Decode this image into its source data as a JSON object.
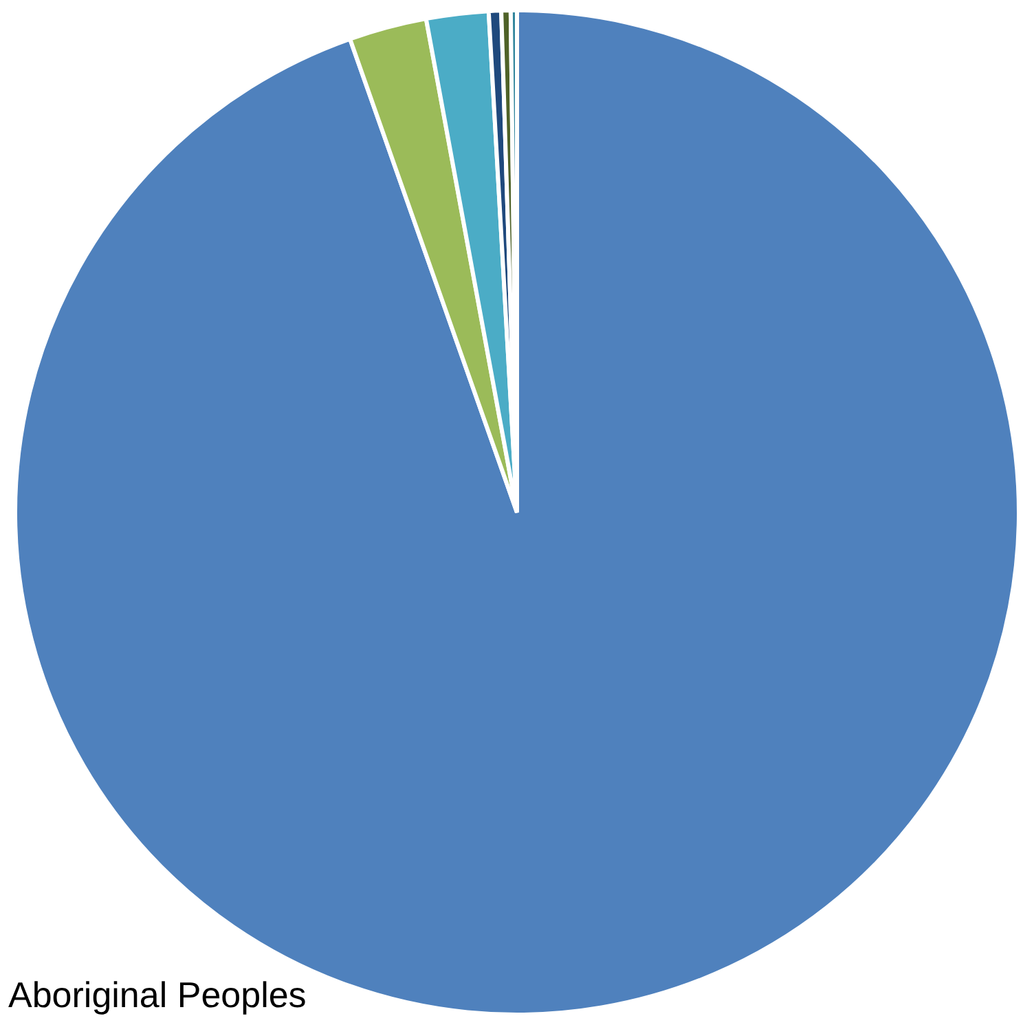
{
  "chart_data": {
    "type": "pie",
    "categories": [
      null,
      null,
      null,
      null,
      null,
      null
    ],
    "values": [
      94.6,
      2.5,
      2.0,
      0.4,
      0.3,
      0.2
    ],
    "colors": [
      "#4f81bd",
      "#9bbb59",
      "#4bacc6",
      "#1f497d",
      "#4f6228",
      "#31859c"
    ],
    "annotations": [
      "Aboriginal Peoples"
    ],
    "legend": false
  }
}
